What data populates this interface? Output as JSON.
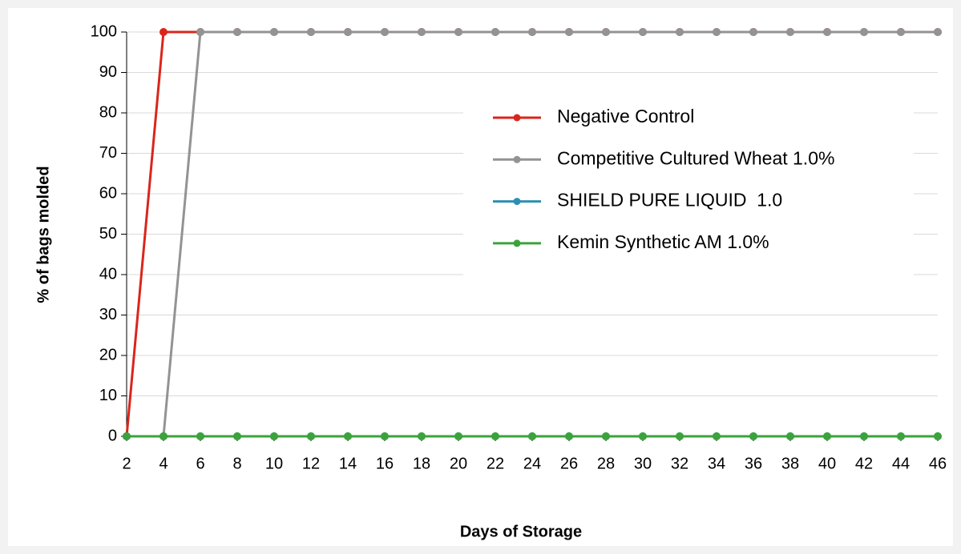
{
  "chart_data": {
    "type": "line",
    "categories": [
      2,
      4,
      6,
      8,
      10,
      12,
      14,
      16,
      18,
      20,
      22,
      24,
      26,
      28,
      30,
      32,
      34,
      36,
      38,
      40,
      42,
      44,
      46
    ],
    "series": [
      {
        "name": "Negative Control",
        "color": "#d9261c",
        "values": [
          0,
          100,
          100,
          100,
          100,
          100,
          100,
          100,
          100,
          100,
          100,
          100,
          100,
          100,
          100,
          100,
          100,
          100,
          100,
          100,
          100,
          100,
          100
        ]
      },
      {
        "name": "Competitive Cultured Wheat 1.0%",
        "color": "#939393",
        "values": [
          0,
          0,
          100,
          100,
          100,
          100,
          100,
          100,
          100,
          100,
          100,
          100,
          100,
          100,
          100,
          100,
          100,
          100,
          100,
          100,
          100,
          100,
          100
        ]
      },
      {
        "name": "SHIELD PURE LIQUID  1.0",
        "color": "#2e8fb3",
        "values": [
          0,
          0,
          0,
          0,
          0,
          0,
          0,
          0,
          0,
          0,
          0,
          0,
          0,
          0,
          0,
          0,
          0,
          0,
          0,
          0,
          0,
          0,
          0
        ]
      },
      {
        "name": "Kemin Synthetic AM 1.0%",
        "color": "#3aa33a",
        "values": [
          0,
          0,
          0,
          0,
          0,
          0,
          0,
          0,
          0,
          0,
          0,
          0,
          0,
          0,
          0,
          0,
          0,
          0,
          0,
          0,
          0,
          0,
          0
        ]
      }
    ],
    "ylim": [
      0,
      100
    ],
    "yticks": [
      0,
      10,
      20,
      30,
      40,
      50,
      60,
      70,
      80,
      90,
      100
    ],
    "xlabel": "Days of Storage",
    "ylabel": "%  of bags molded",
    "grid": true
  }
}
